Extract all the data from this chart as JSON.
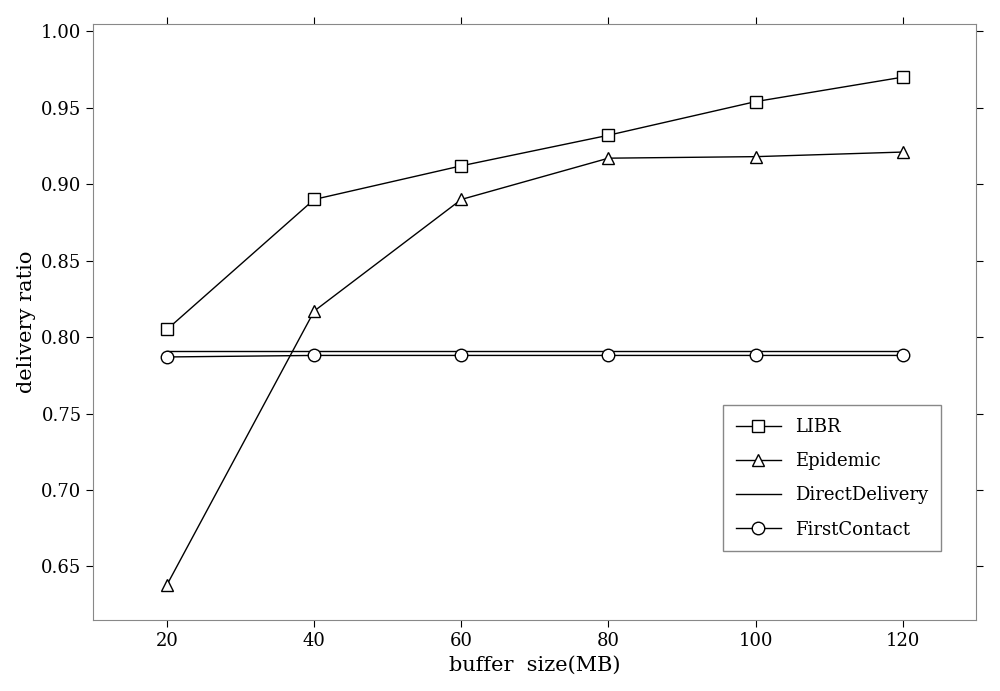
{
  "x": [
    20,
    40,
    60,
    80,
    100,
    120
  ],
  "LIBR": [
    0.805,
    0.89,
    0.912,
    0.932,
    0.954,
    0.97
  ],
  "Epidemic": [
    0.638,
    0.817,
    0.89,
    0.917,
    0.918,
    0.921
  ],
  "DirectDelivery": [
    0.791,
    0.791,
    0.791,
    0.791,
    0.791,
    0.791
  ],
  "FirstContact": [
    0.787,
    0.788,
    0.788,
    0.788,
    0.788,
    0.788
  ],
  "xlabel": "buffer  size(MB)",
  "ylabel": "delivery ratio",
  "xlim": [
    10,
    130
  ],
  "ylim": [
    0.615,
    1.005
  ],
  "yticks": [
    0.65,
    0.7,
    0.75,
    0.8,
    0.85,
    0.9,
    0.95,
    1.0
  ],
  "xticks": [
    20,
    40,
    60,
    80,
    100,
    120
  ],
  "line_color": "#000000",
  "background_color": "#ffffff",
  "legend_labels": [
    "LIBR",
    "Epidemic",
    "DirectDelivery",
    "FirstContact"
  ],
  "figsize": [
    10.0,
    6.91
  ],
  "dpi": 100
}
